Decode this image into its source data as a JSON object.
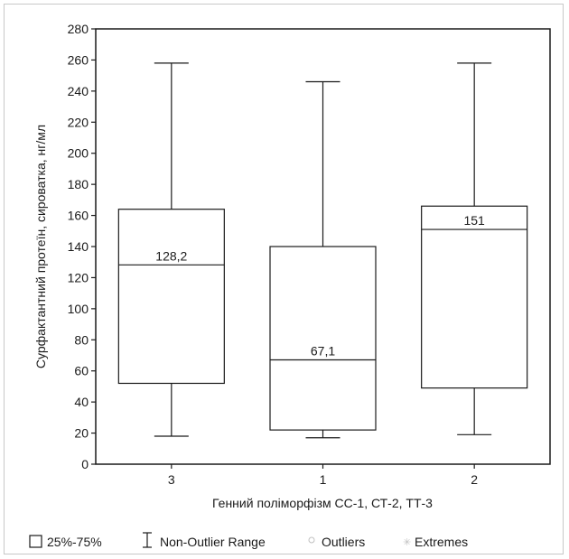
{
  "chart_data": {
    "type": "box",
    "xlabel": "Генний поліморфізм СС-1, СТ-2, ТТ-3",
    "ylabel": "Сурфактантний протеїн, сироватка, нг/мл",
    "ylim": [
      0,
      280
    ],
    "yticks": [
      0,
      20,
      40,
      60,
      80,
      100,
      120,
      140,
      160,
      180,
      200,
      220,
      240,
      260,
      280
    ],
    "categories": [
      "3",
      "1",
      "2"
    ],
    "boxes": [
      {
        "category": "3",
        "min": 18,
        "q1": 52,
        "median": 128.2,
        "q3": 164,
        "max": 258,
        "median_label": "128,2"
      },
      {
        "category": "1",
        "min": 17,
        "q1": 22,
        "median": 67.1,
        "q3": 140,
        "max": 246,
        "median_label": "67,1"
      },
      {
        "category": "2",
        "min": 19,
        "q1": 49,
        "median": 151,
        "q3": 166,
        "max": 258,
        "median_label": "151"
      }
    ],
    "grid": false,
    "legend": {
      "placement": "bottom",
      "items": [
        {
          "symbol": "box",
          "label": "25%-75%"
        },
        {
          "symbol": "whisker",
          "label": "Non-Outlier Range"
        },
        {
          "symbol": "circle",
          "label": "Outliers"
        },
        {
          "symbol": "star",
          "label": "Extremes"
        }
      ]
    },
    "colors": {
      "line": "#1a1a1a",
      "background": "#ffffff",
      "legend_marker": "#c0c0c0"
    }
  }
}
